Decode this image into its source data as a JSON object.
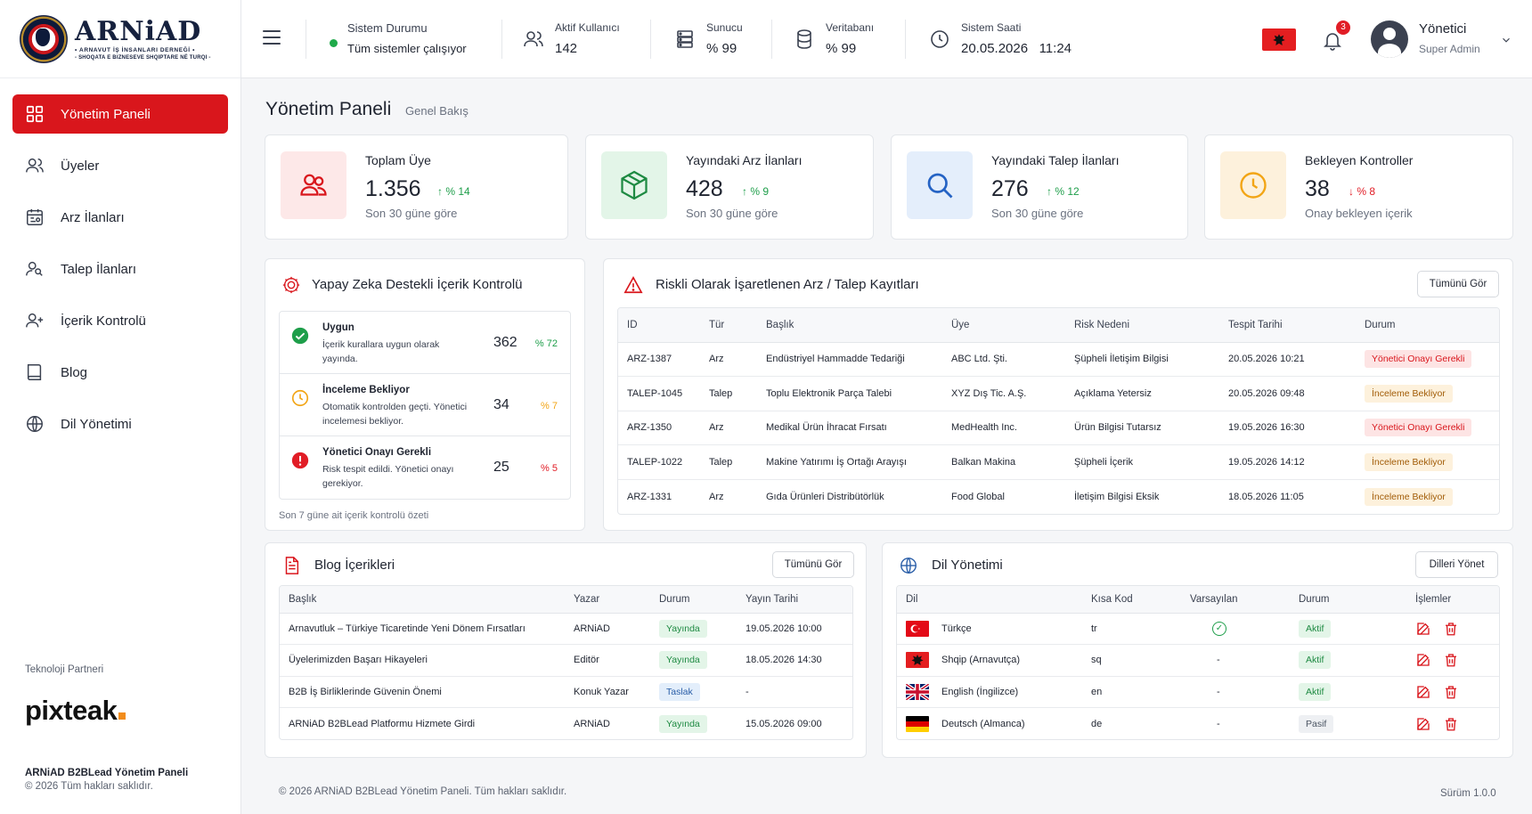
{
  "brand": {
    "title": "ARNiAD",
    "subtitle1": "• ARNAVUT İŞ İNSANLARI DERNEĞİ •",
    "subtitle2": "- SHOQATA E BIZNESEVE SHQIPTARE NË TURQI -"
  },
  "sidebar": {
    "items": [
      {
        "label": "Yönetim Paneli",
        "icon": "dashboard-icon",
        "active": true
      },
      {
        "label": "Üyeler",
        "icon": "users-icon"
      },
      {
        "label": "Arz İlanları",
        "icon": "listing-icon"
      },
      {
        "label": "Talep İlanları",
        "icon": "search-user-icon"
      },
      {
        "label": "İçerik Kontrolü",
        "icon": "user-plus-icon"
      },
      {
        "label": "Blog",
        "icon": "book-icon"
      },
      {
        "label": "Dil Yönetimi",
        "icon": "globe-icon"
      }
    ],
    "partner_label": "Teknoloji Partneri",
    "partner_logo": "pixteak",
    "footer_title": "ARNiAD B2BLead Yönetim Paneli",
    "footer_copy": "© 2026 Tüm hakları saklıdır."
  },
  "header": {
    "system_status_label": "Sistem Durumu",
    "system_status_value": "Tüm sistemler çalışıyor",
    "active_users_label": "Aktif Kullanıcı",
    "active_users_value": "142",
    "server_label": "Sunucu",
    "server_value": "% 99",
    "db_label": "Veritabanı",
    "db_value": "% 99",
    "clock_label": "Sistem Saati",
    "clock_value": "20.05.2026   11:24",
    "notification_count": "3",
    "user_name": "Yönetici",
    "user_role": "Super Admin"
  },
  "page": {
    "title": "Yönetim Paneli",
    "subtitle": "Genel Bakış"
  },
  "kpis": [
    {
      "title": "Toplam Üye",
      "value": "1.356",
      "delta": "↑ % 14",
      "foot": "Son 30 güne göre"
    },
    {
      "title": "Yayındaki Arz İlanları",
      "value": "428",
      "delta": "↑ % 9",
      "foot": "Son 30 güne göre"
    },
    {
      "title": "Yayındaki Talep İlanları",
      "value": "276",
      "delta": "↑ % 12",
      "foot": "Son 30 güne göre"
    },
    {
      "title": "Bekleyen Kontroller",
      "value": "38",
      "delta": "↓ % 8",
      "foot": "Onay bekleyen içerik"
    }
  ],
  "ai": {
    "title": "Yapay Zeka Destekli İçerik Kontrolü",
    "rows": [
      {
        "title": "Uygun",
        "desc": "İçerik kurallara uygun olarak yayında.",
        "value": "362",
        "pct": "% 72"
      },
      {
        "title": "İnceleme Bekliyor",
        "desc": "Otomatik kontrolden geçti. Yönetici incelemesi bekliyor.",
        "value": "34",
        "pct": "% 7"
      },
      {
        "title": "Yönetici Onayı Gerekli",
        "desc": "Risk tespit edildi. Yönetici onayı gerekiyor.",
        "value": "25",
        "pct": "% 5"
      }
    ],
    "footer": "Son 7 güne ait içerik kontrolü özeti"
  },
  "risky": {
    "title": "Riskli Olarak İşaretlenen Arz / Talep Kayıtları",
    "button": "Tümünü Gör",
    "columns": [
      "ID",
      "Tür",
      "Başlık",
      "Üye",
      "Risk Nedeni",
      "Tespit Tarihi",
      "Durum"
    ],
    "rows": [
      [
        "ARZ-1387",
        "Arz",
        "Endüstriyel Hammadde Tedariği",
        "ABC Ltd. Şti.",
        "Şüpheli İletişim Bilgisi",
        "20.05.2026 10:21",
        "Yönetici Onayı Gerekli"
      ],
      [
        "TALEP-1045",
        "Talep",
        "Toplu Elektronik Parça Talebi",
        "XYZ Dış Tic. A.Ş.",
        "Açıklama Yetersiz",
        "20.05.2026 09:48",
        "İnceleme Bekliyor"
      ],
      [
        "ARZ-1350",
        "Arz",
        "Medikal Ürün İhracat Fırsatı",
        "MedHealth Inc.",
        "Ürün Bilgisi Tutarsız",
        "19.05.2026 16:30",
        "Yönetici Onayı Gerekli"
      ],
      [
        "TALEP-1022",
        "Talep",
        "Makine Yatırımı İş Ortağı Arayışı",
        "Balkan Makina",
        "Şüpheli İçerik",
        "19.05.2026 14:12",
        "İnceleme Bekliyor"
      ],
      [
        "ARZ-1331",
        "Arz",
        "Gıda Ürünleri Distribütörlük",
        "Food Global",
        "İletişim Bilgisi Eksik",
        "18.05.2026 11:05",
        "İnceleme Bekliyor"
      ]
    ]
  },
  "blog": {
    "title": "Blog İçerikleri",
    "button": "Tümünü Gör",
    "columns": [
      "Başlık",
      "Yazar",
      "Durum",
      "Yayın Tarihi"
    ],
    "rows": [
      [
        "Arnavutluk – Türkiye Ticaretinde Yeni Dönem Fırsatları",
        "ARNiAD",
        "Yayında",
        "19.05.2026 10:00"
      ],
      [
        "Üyelerimizden Başarı Hikayeleri",
        "Editör",
        "Yayında",
        "18.05.2026 14:30"
      ],
      [
        "B2B İş Birliklerinde Güvenin Önemi",
        "Konuk Yazar",
        "Taslak",
        "-"
      ],
      [
        "ARNiAD B2BLead Platformu Hizmete Girdi",
        "ARNiAD",
        "Yayında",
        "15.05.2026 09:00"
      ]
    ]
  },
  "languages": {
    "title": "Dil Yönetimi",
    "button": "Dilleri Yönet",
    "columns": [
      "Dil",
      "Kısa Kod",
      "Varsayılan",
      "Durum",
      "İşlemler"
    ],
    "rows": [
      {
        "name": "Türkçe",
        "code": "tr",
        "default": "✓",
        "status": "Aktif",
        "flag": "tr"
      },
      {
        "name": "Shqip (Arnavutça)",
        "code": "sq",
        "default": "-",
        "status": "Aktif",
        "flag": "al"
      },
      {
        "name": "English (İngilizce)",
        "code": "en",
        "default": "-",
        "status": "Aktif",
        "flag": "gb"
      },
      {
        "name": "Deutsch (Almanca)",
        "code": "de",
        "default": "-",
        "status": "Pasif",
        "flag": "de"
      }
    ]
  },
  "footer": {
    "copyright": "© 2026 ARNiAD B2BLead Yönetim Paneli. Tüm hakları saklıdır.",
    "version": "Sürüm 1.0.0"
  },
  "colors": {
    "accent": "#d9161c",
    "success": "#1e9e4a",
    "warning": "#f2a516"
  }
}
